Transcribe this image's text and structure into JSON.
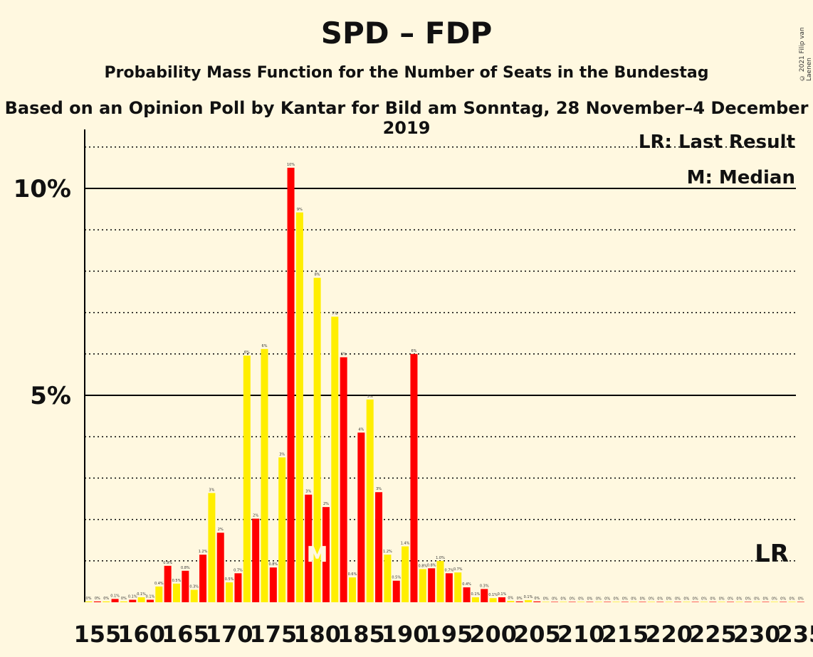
{
  "title": "SPD – FDP",
  "subtitle": "Probability Mass Function for the Number of Seats in the Bundestag",
  "subtitle2": "Based on an Opinion Poll by Kantar for Bild am Sonntag, 28 November–4 December 2019",
  "copyright": "© 2021 Filip van Laenen",
  "legend": {
    "lr": "LR: Last Result",
    "median": "M: Median"
  },
  "lr_marker": "LR",
  "median_marker": "M",
  "colors": {
    "red": "#FF0000",
    "yellow": "#FFEE00",
    "background": "#FFF8E0"
  },
  "chart_data": {
    "type": "bar",
    "xlabel": "",
    "ylabel": "",
    "x_tick_labels": [
      "155",
      "160",
      "165",
      "170",
      "175",
      "180",
      "185",
      "190",
      "195",
      "200",
      "205",
      "210",
      "215",
      "220",
      "225",
      "230",
      "235"
    ],
    "y_tick_labels": [
      "5%",
      "10%"
    ],
    "ylim": [
      0,
      11.5
    ],
    "median_seat": 180,
    "last_result_seat": 234,
    "seats": [
      154,
      155,
      156,
      157,
      158,
      159,
      160,
      161,
      162,
      163,
      164,
      165,
      166,
      167,
      168,
      169,
      170,
      171,
      172,
      173,
      174,
      175,
      176,
      177,
      178,
      179,
      180,
      181,
      182,
      183,
      184,
      185,
      186,
      187,
      188,
      189,
      190,
      191,
      192,
      193,
      194,
      195,
      196,
      197,
      198,
      199,
      200,
      201,
      202,
      203,
      204,
      205,
      206,
      207,
      208,
      209,
      210,
      211,
      212,
      213,
      214,
      215,
      216,
      217,
      218,
      219,
      220,
      221,
      222,
      223,
      224,
      225,
      226,
      227,
      228,
      229,
      230,
      231,
      232,
      233,
      234,
      235
    ],
    "values": [
      0.02,
      0.02,
      0.02,
      0.08,
      0.02,
      0.06,
      0.12,
      0.06,
      0.38,
      0.88,
      0.45,
      0.76,
      0.3,
      1.15,
      2.64,
      1.68,
      0.48,
      0.7,
      5.96,
      2.02,
      6.12,
      0.84,
      3.5,
      10.5,
      9.42,
      2.6,
      7.84,
      2.3,
      6.9,
      5.92,
      0.6,
      4.1,
      4.9,
      2.66,
      1.15,
      0.52,
      1.35,
      6.0,
      0.8,
      0.82,
      1.0,
      0.7,
      0.72,
      0.36,
      0.12,
      0.32,
      0.1,
      0.12,
      0.03,
      0.02,
      0.05,
      0.02,
      0.01,
      0.01,
      0.01,
      0.01,
      0.01,
      0.01,
      0.01,
      0.01,
      0.01,
      0.01,
      0.01,
      0.01,
      0.01,
      0.01,
      0.01,
      0.01,
      0.01,
      0.01,
      0.01,
      0.01,
      0.01,
      0.01,
      0.01,
      0.01,
      0.01,
      0.01,
      0.01,
      0.01,
      0.01,
      0.01
    ],
    "labels": [
      "0%",
      "0%",
      "0%",
      "0.1%",
      "0%",
      "0.1%",
      "0.1%",
      "0.1%",
      "0.4%",
      "0.9%",
      "0.5%",
      "0.8%",
      "0.3%",
      "1.2%",
      "3%",
      "2%",
      "0.5%",
      "0.7%",
      "6%",
      "2%",
      "6%",
      "0.8%",
      "3%",
      "10%",
      "9%",
      "3%",
      "8%",
      "2%",
      "7%",
      "6%",
      "0.6%",
      "4%",
      "5%",
      "3%",
      "1.2%",
      "0.5%",
      "1.4%",
      "6%",
      "0.8%",
      "0.8%",
      "1.0%",
      "0.7%",
      "0.7%",
      "0.4%",
      "0.1%",
      "0.3%",
      "0.1%",
      "0.1%",
      "0%",
      "0%",
      "0.1%",
      "0%",
      "0%",
      "0%",
      "0%",
      "0%",
      "0%",
      "0%",
      "0%",
      "0%",
      "0%",
      "0%",
      "0%",
      "0%",
      "0%",
      "0%",
      "0%",
      "0%",
      "0%",
      "0%",
      "0%",
      "0%",
      "0%",
      "0%",
      "0%",
      "0%",
      "0%",
      "0%",
      "0%",
      "0%",
      "0%",
      "0%"
    ]
  }
}
